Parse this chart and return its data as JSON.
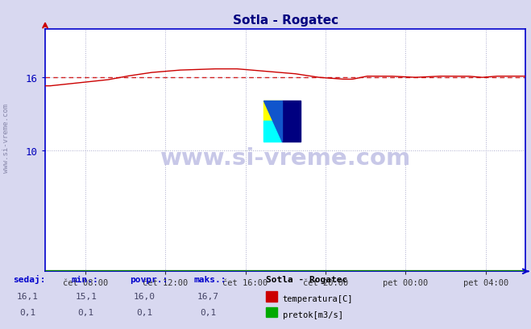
{
  "title": "Sotla - Rogatec",
  "title_color": "#000080",
  "bg_color": "#d8d8f0",
  "plot_bg_color": "#ffffff",
  "grid_color": "#aaaacc",
  "x_labels": [
    "čet 08:00",
    "čet 12:00",
    "čet 16:00",
    "čet 20:00",
    "pet 00:00",
    "pet 04:00"
  ],
  "x_ticks_pos": [
    0.0833,
    0.25,
    0.4167,
    0.5833,
    0.75,
    0.9167
  ],
  "ylim": [
    0,
    20
  ],
  "y_ticks": [
    10,
    16
  ],
  "y_label_color": "#0000bb",
  "axis_color": "#0000cc",
  "temp_line_color": "#cc0000",
  "flow_line_color": "#007700",
  "watermark_text": "www.si-vreme.com",
  "watermark_color": "#c8c8e8",
  "sidebar_text": "www.si-vreme.com",
  "sidebar_color": "#8888aa",
  "table_headers": [
    "sedaj:",
    "min.:",
    "povpr.:",
    "maks.:"
  ],
  "table_header_color": "#0000cc",
  "table_row1": [
    "16,1",
    "15,1",
    "16,0",
    "16,7"
  ],
  "table_row2": [
    "0,1",
    "0,1",
    "0,1",
    "0,1"
  ],
  "table_value_color": "#444466",
  "station_name": "Sotla - Rogatec",
  "legend_label1": "temperatura[C]",
  "legend_label2": "pretok[m3/s]",
  "legend_color1": "#cc0000",
  "legend_color2": "#00aa00",
  "avg_line_value": 16.0,
  "avg_line_color": "#cc0000",
  "n_points": 289
}
